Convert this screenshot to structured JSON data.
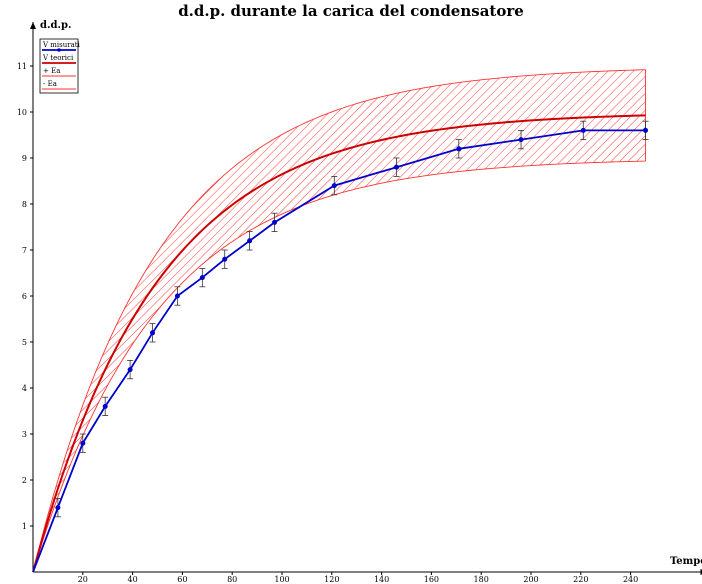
{
  "chart_data": {
    "type": "line",
    "title": "d.d.p. durante la carica del condensatore",
    "xlabel": "Tempo",
    "ylabel": "d.d.p.",
    "xlim": [
      0,
      250
    ],
    "ylim": [
      0,
      12
    ],
    "x_ticks": [
      20,
      40,
      60,
      80,
      100,
      120,
      140,
      160,
      180,
      200,
      220,
      240
    ],
    "y_ticks": [
      1,
      2,
      3,
      4,
      5,
      6,
      7,
      8,
      9,
      10,
      11
    ],
    "legend_position": "top-left",
    "series": [
      {
        "name": "V misurati",
        "color": "#0000cc",
        "marker": "circle",
        "x": [
          0,
          10,
          20,
          29,
          39,
          48,
          58,
          68,
          77,
          87,
          97,
          121,
          146,
          171,
          196,
          221,
          246
        ],
        "y": [
          0,
          1.4,
          2.8,
          3.6,
          4.4,
          5.2,
          6.0,
          6.4,
          6.8,
          7.2,
          7.6,
          8.4,
          8.8,
          9.2,
          9.4,
          9.6,
          9.6
        ],
        "error": 0.2
      },
      {
        "name": "V teorici",
        "color": "#cc0000",
        "model": {
          "v_max": 10,
          "tau": 50
        },
        "x_range": [
          0,
          246
        ]
      },
      {
        "name": "+ Ea",
        "color": "#ff3333",
        "model": {
          "v_max": 11,
          "tau": 50
        },
        "x_range": [
          0,
          246
        ]
      },
      {
        "name": "- Ea",
        "color": "#ff3333",
        "model": {
          "v_max": 9,
          "tau": 50
        },
        "x_range": [
          0,
          246
        ]
      }
    ],
    "band_fill": "hatched-red"
  }
}
